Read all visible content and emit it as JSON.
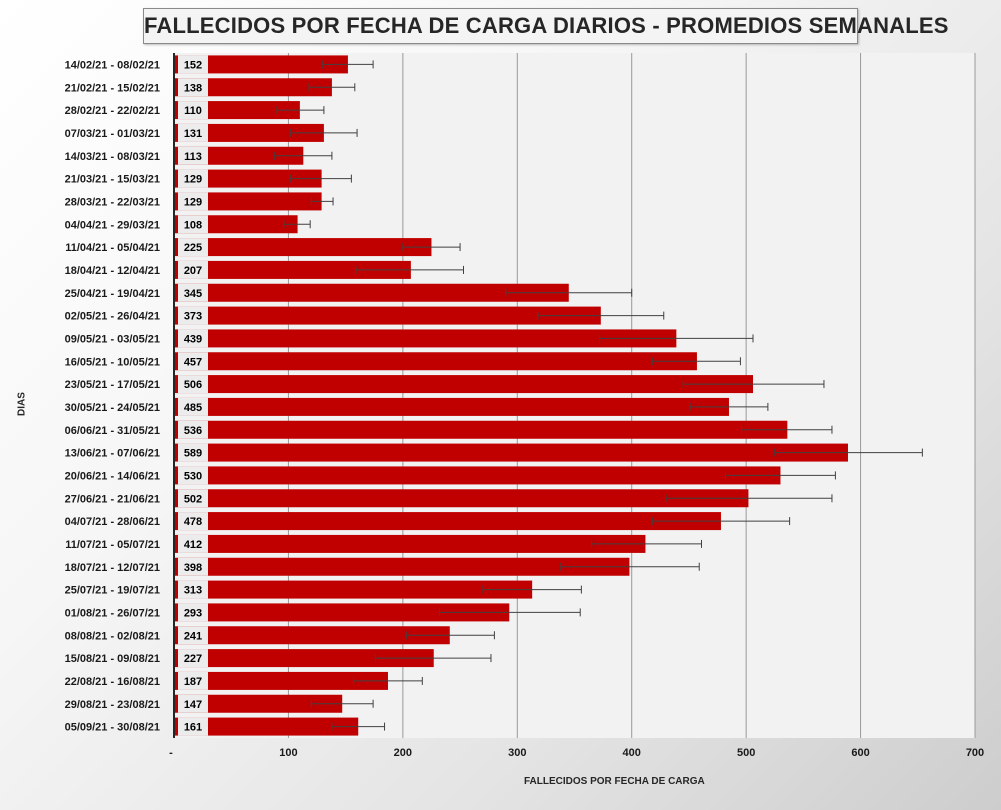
{
  "chart_data": {
    "type": "bar",
    "orientation": "horizontal",
    "title": "FALLECIDOS POR FECHA DE CARGA DIARIOS - PROMEDIOS SEMANALES",
    "xlabel": "FALLECIDOS POR FECHA DE CARGA",
    "ylabel": "DIAS",
    "xlim": [
      0,
      700
    ],
    "x_ticks": [
      "-",
      "100",
      "200",
      "300",
      "400",
      "500",
      "600",
      "700"
    ],
    "grid": "vertical",
    "bar_color": "#c00000",
    "categories": [
      "14/02/21 - 08/02/21",
      "21/02/21 - 15/02/21",
      "28/02/21 - 22/02/21",
      "07/03/21 - 01/03/21",
      "14/03/21 - 08/03/21",
      "21/03/21 - 15/03/21",
      "28/03/21 - 22/03/21",
      "04/04/21 - 29/03/21",
      "11/04/21 - 05/04/21",
      "18/04/21 - 12/04/21",
      "25/04/21 - 19/04/21",
      "02/05/21 - 26/04/21",
      "09/05/21 - 03/05/21",
      "16/05/21 - 10/05/21",
      "23/05/21 - 17/05/21",
      "30/05/21 - 24/05/21",
      "06/06/21 - 31/05/21",
      "13/06/21 - 07/06/21",
      "20/06/21 - 14/06/21",
      "27/06/21 - 21/06/21",
      "04/07/21 - 28/06/21",
      "11/07/21 - 05/07/21",
      "18/07/21 - 12/07/21",
      "25/07/21 - 19/07/21",
      "01/08/21 - 26/07/21",
      "08/08/21 - 02/08/21",
      "15/08/21 - 09/08/21",
      "22/08/21 - 16/08/21",
      "29/08/21 - 23/08/21",
      "05/09/21 - 30/08/21"
    ],
    "values": [
      152,
      138,
      110,
      131,
      113,
      129,
      129,
      108,
      225,
      207,
      345,
      373,
      439,
      457,
      506,
      485,
      536,
      589,
      530,
      502,
      478,
      412,
      398,
      313,
      293,
      241,
      227,
      187,
      147,
      161
    ],
    "error_bars": [
      [
        130,
        174
      ],
      [
        118,
        158
      ],
      [
        90,
        131
      ],
      [
        102,
        160
      ],
      [
        88,
        138
      ],
      [
        102,
        155
      ],
      [
        120,
        139
      ],
      [
        96,
        119
      ],
      [
        200,
        250
      ],
      [
        159,
        253
      ],
      [
        290,
        400
      ],
      [
        318,
        428
      ],
      [
        372,
        506
      ],
      [
        418,
        495
      ],
      [
        445,
        568
      ],
      [
        451,
        519
      ],
      [
        496,
        575
      ],
      [
        525,
        654
      ],
      [
        482,
        578
      ],
      [
        430,
        575
      ],
      [
        418,
        538
      ],
      [
        365,
        461
      ],
      [
        338,
        459
      ],
      [
        270,
        356
      ],
      [
        232,
        355
      ],
      [
        203,
        280
      ],
      [
        176,
        277
      ],
      [
        157,
        217
      ],
      [
        120,
        174
      ],
      [
        138,
        184
      ]
    ]
  }
}
